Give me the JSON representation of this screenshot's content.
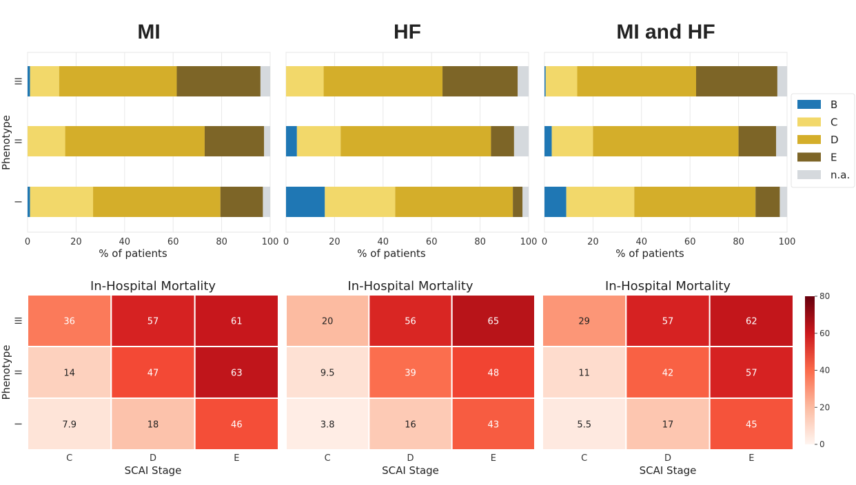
{
  "stage_colors": {
    "B": "#1f77b4",
    "C": "#f2d86a",
    "D": "#d4ae2a",
    "E": "#7d6527",
    "n.a.": "#d5d9dd"
  },
  "legend": {
    "items": [
      "B",
      "C",
      "D",
      "E",
      "n.a."
    ]
  },
  "colorbar": {
    "ticks": [
      "0",
      "20",
      "40",
      "60",
      "80"
    ],
    "min": 0,
    "max": 80
  },
  "chart_data": [
    {
      "type": "bar",
      "orientation": "horizontal-stacked",
      "title": "MI",
      "xlabel": "% of patients",
      "ylabel": "Phenotype",
      "xlim": [
        0,
        100
      ],
      "xticks": [
        "0",
        "20",
        "40",
        "60",
        "80",
        "100"
      ],
      "categories": [
        "III",
        "II",
        "I"
      ],
      "series": [
        {
          "name": "B",
          "values": [
            1,
            0,
            1
          ]
        },
        {
          "name": "C",
          "values": [
            12,
            15.5,
            26
          ]
        },
        {
          "name": "D",
          "values": [
            48.5,
            57.5,
            52.5
          ]
        },
        {
          "name": "E",
          "values": [
            34.5,
            24.5,
            17.5
          ]
        },
        {
          "name": "n.a.",
          "values": [
            4,
            2.5,
            3
          ]
        }
      ]
    },
    {
      "type": "bar",
      "orientation": "horizontal-stacked",
      "title": "HF",
      "xlabel": "% of patients",
      "ylabel": "",
      "xlim": [
        0,
        100
      ],
      "xticks": [
        "0",
        "20",
        "40",
        "60",
        "80",
        "100"
      ],
      "categories": [
        "III",
        "II",
        "I"
      ],
      "series": [
        {
          "name": "B",
          "values": [
            0,
            4.5,
            16
          ]
        },
        {
          "name": "C",
          "values": [
            15.5,
            18,
            29
          ]
        },
        {
          "name": "D",
          "values": [
            49,
            62,
            48.5
          ]
        },
        {
          "name": "E",
          "values": [
            31,
            9.5,
            4
          ]
        },
        {
          "name": "n.a.",
          "values": [
            4.5,
            6,
            2.5
          ]
        }
      ]
    },
    {
      "type": "bar",
      "orientation": "horizontal-stacked",
      "title": "MI and HF",
      "xlabel": "% of patients",
      "ylabel": "",
      "xlim": [
        0,
        100
      ],
      "xticks": [
        "0",
        "20",
        "40",
        "60",
        "80",
        "100"
      ],
      "categories": [
        "III",
        "II",
        "I"
      ],
      "series": [
        {
          "name": "B",
          "values": [
            0.5,
            3,
            9
          ]
        },
        {
          "name": "C",
          "values": [
            13,
            17,
            28
          ]
        },
        {
          "name": "D",
          "values": [
            49,
            60,
            50
          ]
        },
        {
          "name": "E",
          "values": [
            33.5,
            15.5,
            10
          ]
        },
        {
          "name": "n.a.",
          "values": [
            4,
            4.5,
            3
          ]
        }
      ]
    },
    {
      "type": "heatmap",
      "title": "In-Hospital Mortality",
      "xlabel": "SCAI Stage",
      "ylabel": "Phenotype",
      "x": [
        "C",
        "D",
        "E"
      ],
      "y": [
        "III",
        "II",
        "I"
      ],
      "values": [
        [
          36,
          57,
          61
        ],
        [
          14,
          47,
          63
        ],
        [
          7.9,
          18,
          46
        ]
      ]
    },
    {
      "type": "heatmap",
      "title": "In-Hospital Mortality",
      "xlabel": "SCAI Stage",
      "ylabel": "",
      "x": [
        "C",
        "D",
        "E"
      ],
      "y": [
        "III",
        "II",
        "I"
      ],
      "values": [
        [
          20,
          56,
          65
        ],
        [
          9.5,
          39,
          48
        ],
        [
          3.8,
          16,
          43
        ]
      ]
    },
    {
      "type": "heatmap",
      "title": "In-Hospital Mortality",
      "xlabel": "SCAI Stage",
      "ylabel": "",
      "x": [
        "C",
        "D",
        "E"
      ],
      "y": [
        "III",
        "II",
        "I"
      ],
      "values": [
        [
          29,
          57,
          62
        ],
        [
          11,
          42,
          57
        ],
        [
          5.5,
          17,
          45
        ]
      ]
    }
  ]
}
